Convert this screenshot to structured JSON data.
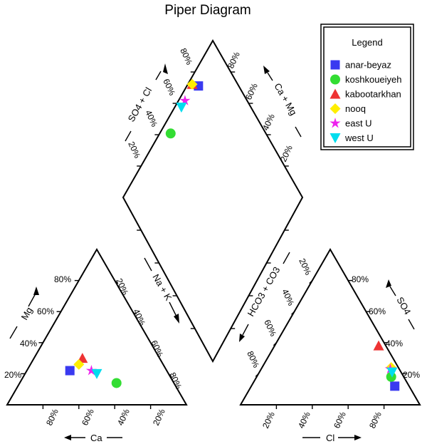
{
  "chart_data": {
    "type": "scatter",
    "title": "Piper Diagram",
    "legend": {
      "title": "Legend",
      "position": "top-right",
      "entries": [
        {
          "name": "anar-beyaz",
          "marker": "square",
          "color": "#3a3af0"
        },
        {
          "name": "koshkoueiyeh",
          "marker": "circle",
          "color": "#33dd33"
        },
        {
          "name": "kabootarkhan",
          "marker": "triangle-up",
          "color": "#ee3333"
        },
        {
          "name": "nooq",
          "marker": "diamond",
          "color": "#ffee00"
        },
        {
          "name": "east U",
          "marker": "star",
          "color": "#ee22ee"
        },
        {
          "name": "west U",
          "marker": "triangle-down",
          "color": "#00ddee"
        }
      ]
    },
    "cation_triangle": {
      "axes": {
        "ca": "Ca",
        "mg": "Mg",
        "na_k": "Na + K"
      },
      "ticks": [
        "20%",
        "40%",
        "60%",
        "80%"
      ],
      "series": [
        {
          "name": "anar-beyaz",
          "ca": 54,
          "mg": 22,
          "na_k": 24
        },
        {
          "name": "koshkoueiyeh",
          "ca": 32,
          "mg": 14,
          "na_k": 54
        },
        {
          "name": "kabootarkhan",
          "ca": 43,
          "mg": 30,
          "na_k": 27
        },
        {
          "name": "nooq",
          "ca": 47,
          "mg": 26,
          "na_k": 27
        },
        {
          "name": "east U",
          "ca": 42,
          "mg": 22,
          "na_k": 36
        },
        {
          "name": "west U",
          "ca": 40,
          "mg": 20,
          "na_k": 40
        }
      ]
    },
    "anion_triangle": {
      "axes": {
        "cl": "Cl",
        "so4": "SO4",
        "hco3_co3": "HCO3 + CO3"
      },
      "ticks": [
        "20%",
        "40%",
        "60%",
        "80%"
      ],
      "series": [
        {
          "name": "anar-beyaz",
          "cl": 80,
          "so4": 12,
          "hco3_co3": 8
        },
        {
          "name": "koshkoueiyeh",
          "cl": 75,
          "so4": 18,
          "hco3_co3": 7
        },
        {
          "name": "kabootarkhan",
          "cl": 58,
          "so4": 38,
          "hco3_co3": 4
        },
        {
          "name": "nooq",
          "cl": 72,
          "so4": 24,
          "hco3_co3": 4
        },
        {
          "name": "east U",
          "cl": 72,
          "so4": 23,
          "hco3_co3": 5
        },
        {
          "name": "west U",
          "cl": 74,
          "so4": 21,
          "hco3_co3": 5
        }
      ]
    },
    "diamond": {
      "axes": {
        "so4_cl": "SO4 + Cl",
        "ca_mg": "Ca + Mg"
      },
      "ticks": [
        "20%",
        "40%",
        "60%",
        "80%"
      ]
    }
  }
}
